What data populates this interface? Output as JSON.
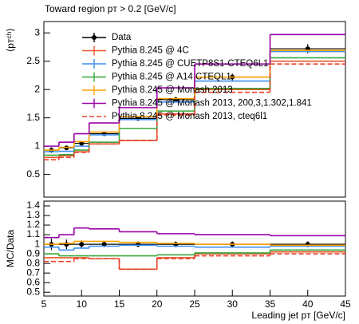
{
  "chart_data": [
    {
      "type": "histogram",
      "title": "Toward region pᴛ > 0.2 [GeV/c]",
      "y_label": "⟨pᴛᶜʰ⟩",
      "bins": [
        5,
        7,
        9,
        11,
        15,
        20,
        25,
        35,
        45
      ],
      "xlim": [
        5,
        45
      ],
      "ylim": [
        0.1,
        3.2
      ],
      "yticks": [
        0.5,
        1,
        1.5,
        2,
        2.5,
        3
      ],
      "legend": "top-left",
      "series": [
        {
          "name": "Data",
          "color": "#000000",
          "values": [
            0.93,
            0.97,
            1.05,
            1.22,
            1.49,
            1.82,
            2.22,
            2.72
          ],
          "errors": [
            0.05,
            0.04,
            0.04,
            0.04,
            0.04,
            0.05,
            0.06,
            0.08
          ]
        },
        {
          "name": "Pythia 8.245 @ 4C",
          "color": "#e8542c",
          "values": [
            0.8,
            0.83,
            0.9,
            1.04,
            1.1,
            1.57,
            2.0,
            2.5
          ]
        },
        {
          "name": "Pythia 8.245 @ CUETP8S1-CTEQ6L1",
          "color": "#3f8ff0",
          "values": [
            0.9,
            0.91,
            1.0,
            1.2,
            1.47,
            1.78,
            2.15,
            2.67
          ]
        },
        {
          "name": "Pythia 8.245 @ A14 CTEQL1",
          "color": "#36a83c",
          "values": [
            0.84,
            0.85,
            0.93,
            1.07,
            1.31,
            1.62,
            2.02,
            2.56
          ]
        },
        {
          "name": "Pythia 8.245 @ Monash 2013",
          "color": "#ffa200",
          "values": [
            0.93,
            0.98,
            1.08,
            1.25,
            1.52,
            1.84,
            2.22,
            2.69
          ]
        },
        {
          "name": "Pythia 8.245 @ Monash 2013, 200,3,1.302,1.841",
          "color": "#9b00a8",
          "values": [
            1.0,
            1.07,
            1.22,
            1.41,
            1.68,
            2.03,
            2.45,
            2.97
          ]
        },
        {
          "name": "Pythia 8.245 @ Monash 2013, cteq6l1",
          "color": "#e8402a",
          "dash": true,
          "values": [
            0.76,
            0.8,
            0.89,
            1.04,
            1.1,
            1.55,
            1.95,
            2.45
          ]
        }
      ]
    },
    {
      "type": "histogram",
      "y_label": "MC/Data",
      "x_label": "Leading jet pᴛ [GeV/c]",
      "bins": [
        5,
        7,
        9,
        11,
        15,
        20,
        25,
        35,
        45
      ],
      "xlim": [
        5,
        45
      ],
      "xticks": [
        5,
        10,
        15,
        20,
        25,
        30,
        35,
        40,
        45
      ],
      "ylim": [
        0.46,
        1.45
      ],
      "yticks": [
        0.5,
        0.6,
        0.7,
        0.8,
        0.9,
        1,
        1.1,
        1.2,
        1.3,
        1.4
      ],
      "series": [
        {
          "color": "#000000",
          "values": [
            1,
            1,
            1,
            1,
            1,
            1,
            1,
            1
          ],
          "errors": [
            0.06,
            0.05,
            0.04,
            0.03,
            0.03,
            0.03,
            0.03,
            0.03
          ]
        },
        {
          "color": "#e8542c",
          "values": [
            0.86,
            0.86,
            0.86,
            0.85,
            0.74,
            0.86,
            0.9,
            0.92
          ]
        },
        {
          "color": "#3f8ff0",
          "values": [
            0.97,
            0.94,
            0.96,
            0.98,
            0.99,
            0.98,
            0.97,
            0.98
          ]
        },
        {
          "color": "#36a83c",
          "values": [
            0.9,
            0.88,
            0.88,
            0.88,
            0.88,
            0.89,
            0.91,
            0.94
          ]
        },
        {
          "color": "#ffa200",
          "values": [
            1.0,
            1.01,
            1.03,
            1.03,
            1.02,
            1.01,
            1.0,
            0.99
          ]
        },
        {
          "color": "#9b00a8",
          "values": [
            1.07,
            1.1,
            1.17,
            1.16,
            1.13,
            1.11,
            1.1,
            1.09
          ]
        },
        {
          "color": "#e8402a",
          "dash": true,
          "values": [
            0.82,
            0.82,
            0.85,
            0.85,
            0.74,
            0.85,
            0.88,
            0.9
          ]
        }
      ]
    }
  ]
}
